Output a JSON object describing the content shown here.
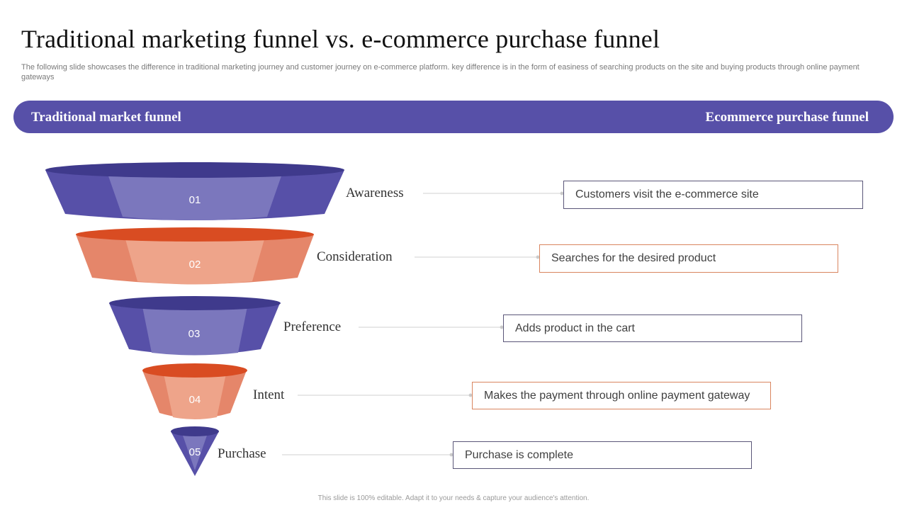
{
  "title": "Traditional marketing funnel vs. e-commerce purchase funnel",
  "subtitle": "The following slide showcases the difference in traditional marketing journey and customer journey on e-commerce platform. key difference is in the form of easiness of searching products on the site and buying products through online payment gateways",
  "banner": {
    "left": "Traditional market funnel",
    "right": "Ecommerce purchase funnel"
  },
  "colors": {
    "purple_dark": "#3f3a8c",
    "purple_mid": "#5750a8",
    "purple_light": "#7b77bd",
    "orange_dark": "#d94c22",
    "orange_mid": "#e5866a",
    "orange_light": "#eea48a"
  },
  "stages": [
    {
      "number": "01",
      "label": "Awareness",
      "description": "Customers visit the e-commerce site",
      "color": "purple"
    },
    {
      "number": "02",
      "label": "Consideration",
      "description": "Searches for the desired product",
      "color": "orange"
    },
    {
      "number": "03",
      "label": "Preference",
      "description": "Adds product in the cart",
      "color": "purple"
    },
    {
      "number": "04",
      "label": "Intent",
      "description": "Makes the payment through online payment gateway",
      "color": "orange"
    },
    {
      "number": "05",
      "label": "Purchase",
      "description": "Purchase is complete",
      "color": "purple"
    }
  ],
  "footer": "This slide is 100% editable.  Adapt it to your needs & capture your audience's attention."
}
